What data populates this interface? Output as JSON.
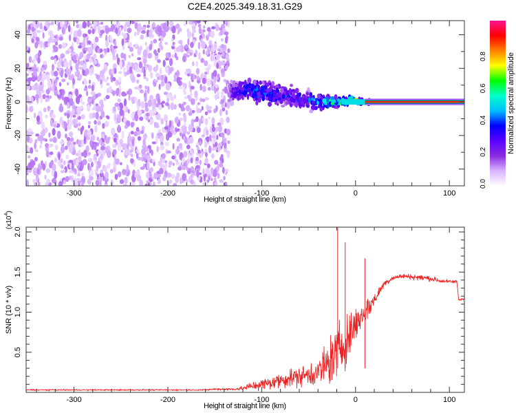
{
  "chart_data": [
    {
      "type": "heatmap",
      "title": "C2E4.2025.349.18.31.G29",
      "xlabel": "Height of straight line (km)",
      "ylabel": "Frequency (Hz)",
      "xlim": [
        -351,
        116
      ],
      "ylim": [
        -50,
        48.4
      ],
      "xticks": [
        -300,
        -200,
        -100,
        0,
        100
      ],
      "yticks": [
        -40,
        -20,
        0,
        20,
        40
      ],
      "colorbar": {
        "label": "Normalized spectral amplitude",
        "range": [
          0,
          1
        ],
        "ticks": [
          "0.0",
          "0.2",
          "0.4",
          "0.6",
          "0.8"
        ],
        "colormap": [
          "#ffffff",
          "#d9b3ff",
          "#8a2be2",
          "#5a00ff",
          "#0000ff",
          "#00bfff",
          "#00ffcc",
          "#00ff00",
          "#ffff00",
          "#ff8000",
          "#ff0000",
          "#ff1493"
        ]
      },
      "noise_region_x_max": -135,
      "signal_ridge": {
        "x": [
          -135,
          -120,
          -100,
          -80,
          -60,
          -40,
          -30,
          -15,
          -5,
          5,
          15,
          50,
          116
        ],
        "center_freq": [
          6,
          7,
          6,
          4,
          2,
          0,
          0,
          0,
          1,
          0,
          0,
          0,
          0
        ],
        "spread": [
          8,
          9,
          10,
          9,
          8,
          7,
          5,
          3,
          3,
          2,
          1.5,
          1.5,
          1.5
        ],
        "peak_amplitude": [
          0.3,
          0.4,
          0.45,
          0.4,
          0.4,
          0.5,
          0.6,
          0.8,
          0.9,
          0.85,
          0.95,
          0.95,
          0.95
        ]
      }
    },
    {
      "type": "line",
      "xlabel": "Height of straight line (km)",
      "ylabel": "SNR (10 * v/v)",
      "y_multiplier": "(x10",
      "y_multiplier_exp": "4",
      "y_multiplier_close": ")",
      "xlim": [
        -351,
        116
      ],
      "ylim": [
        0,
        2.06
      ],
      "xticks": [
        -300,
        -200,
        -100,
        0,
        100
      ],
      "yticks": [
        0.5,
        1.0,
        1.5,
        2.0
      ],
      "series": [
        {
          "name": "SNR",
          "color": "#ee2222",
          "x": [
            -350,
            -340,
            -330,
            -320,
            -310,
            -300,
            -290,
            -280,
            -270,
            -260,
            -250,
            -240,
            -230,
            -220,
            -210,
            -200,
            -190,
            -180,
            -170,
            -160,
            -150,
            -140,
            -130,
            -120,
            -110,
            -100,
            -90,
            -80,
            -70,
            -60,
            -50,
            -40,
            -30,
            -20,
            -10,
            0,
            10,
            20,
            30,
            40,
            50,
            60,
            70,
            80,
            90,
            100,
            108,
            110,
            115
          ],
          "y": [
            0.03,
            0.03,
            0.03,
            0.03,
            0.03,
            0.03,
            0.03,
            0.03,
            0.03,
            0.03,
            0.03,
            0.03,
            0.03,
            0.03,
            0.03,
            0.03,
            0.03,
            0.03,
            0.03,
            0.03,
            0.04,
            0.04,
            0.04,
            0.05,
            0.08,
            0.1,
            0.12,
            0.15,
            0.18,
            0.2,
            0.22,
            0.25,
            0.35,
            0.5,
            0.65,
            0.85,
            1.0,
            1.15,
            1.35,
            1.43,
            1.45,
            1.44,
            1.43,
            1.42,
            1.39,
            1.38,
            1.38,
            1.15,
            1.17
          ],
          "noise": [
            0.01,
            0.01,
            0.01,
            0.01,
            0.01,
            0.01,
            0.01,
            0.01,
            0.01,
            0.01,
            0.01,
            0.01,
            0.01,
            0.01,
            0.01,
            0.01,
            0.01,
            0.01,
            0.01,
            0.01,
            0.015,
            0.015,
            0.02,
            0.04,
            0.08,
            0.1,
            0.12,
            0.14,
            0.16,
            0.18,
            0.2,
            0.25,
            0.4,
            0.5,
            0.45,
            0.3,
            0.25,
            0.12,
            0.06,
            0.04,
            0.04,
            0.05,
            0.05,
            0.05,
            0.04,
            0.03,
            0.03,
            0.03,
            0.02
          ]
        }
      ],
      "peaks": {
        "x": [
          -19,
          -11,
          10
        ],
        "y": [
          2.06,
          1.87,
          1.67
        ]
      }
    }
  ]
}
